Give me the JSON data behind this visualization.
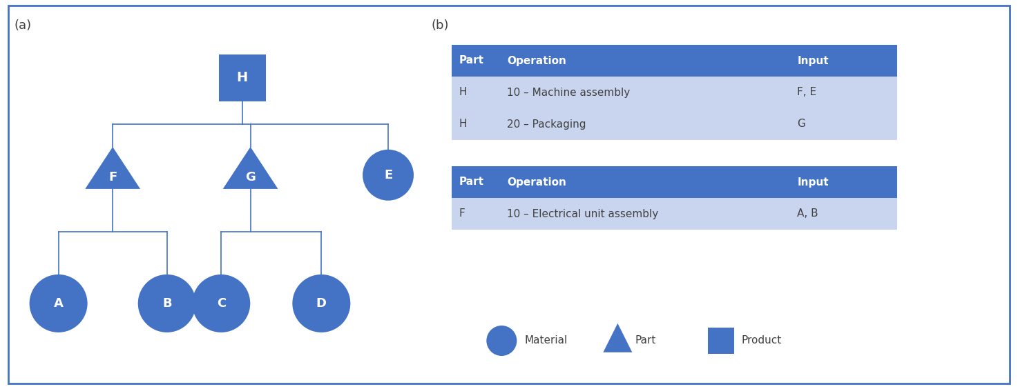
{
  "blue_dark": "#4472C4",
  "blue_light": "#C9D5EE",
  "white": "#FFFFFF",
  "border_color": "#4472C4",
  "text_dark": "#404040",
  "label_a": "(a)",
  "label_b": "(b)",
  "table1_header": [
    "Part",
    "Operation",
    "Input"
  ],
  "table1_rows": [
    [
      "H",
      "10 – Machine assembly",
      "F, E"
    ],
    [
      "H",
      "20 – Packaging",
      "G"
    ]
  ],
  "table2_header": [
    "Part",
    "Operation",
    "Input"
  ],
  "table2_rows": [
    [
      "F",
      "10 – Electrical unit assembly",
      "A, B"
    ]
  ],
  "legend_labels": [
    "Material",
    "Part",
    "Product"
  ],
  "fig_width": 14.74,
  "fig_height": 5.64,
  "dpi": 100
}
